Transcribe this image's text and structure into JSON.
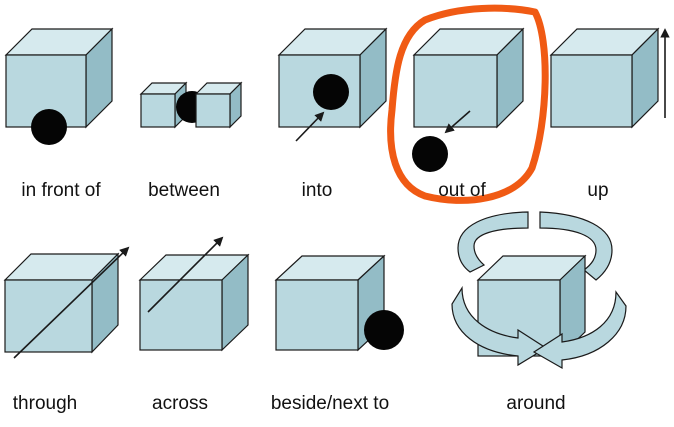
{
  "palette": {
    "cube_front": "#b9d8df",
    "cube_top": "#d6eaee",
    "cube_side": "#93bcc6",
    "edge": "#1a1a1a",
    "ball": "#050505",
    "highlight": "#f05a14"
  },
  "labels": {
    "in_front_of": "in front of",
    "between": "between",
    "into": "into",
    "out_of": "out of",
    "up": "up",
    "through": "through",
    "across": "across",
    "beside_next_to": "beside/next to",
    "around": "around"
  }
}
